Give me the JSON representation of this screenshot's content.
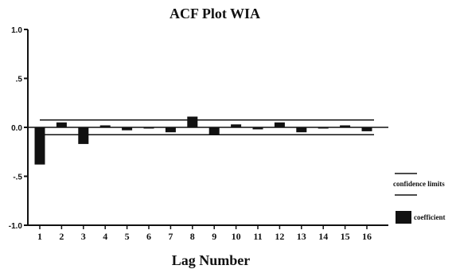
{
  "chart_data": {
    "type": "bar",
    "title": "ACF Plot WIA",
    "xlabel": "Lag Number",
    "ylabel": "",
    "ylim": [
      -1.0,
      1.0
    ],
    "y_ticks": [
      "1.0",
      ".5",
      "0.0",
      "-.5",
      "-1.0"
    ],
    "y_tick_values": [
      1.0,
      0.5,
      0.0,
      -0.5,
      -1.0
    ],
    "categories": [
      "1",
      "2",
      "3",
      "4",
      "5",
      "6",
      "7",
      "8",
      "9",
      "10",
      "11",
      "12",
      "13",
      "14",
      "15",
      "16"
    ],
    "series": [
      {
        "name": "coefficient",
        "values": [
          -0.38,
          0.05,
          -0.17,
          0.02,
          -0.03,
          0.0,
          -0.05,
          0.11,
          -0.07,
          0.03,
          -0.02,
          0.05,
          -0.05,
          -0.01,
          0.02,
          -0.04
        ]
      }
    ],
    "confidence_limits": [
      0.075,
      -0.075
    ],
    "legend": {
      "placement": "right",
      "items": [
        {
          "label": "confidence limits",
          "kind": "line"
        },
        {
          "label": "coefficient",
          "kind": "bar"
        }
      ]
    },
    "colors": {
      "bar": "#111111",
      "line": "#111111",
      "background": "#ffffff"
    },
    "grid": false
  }
}
